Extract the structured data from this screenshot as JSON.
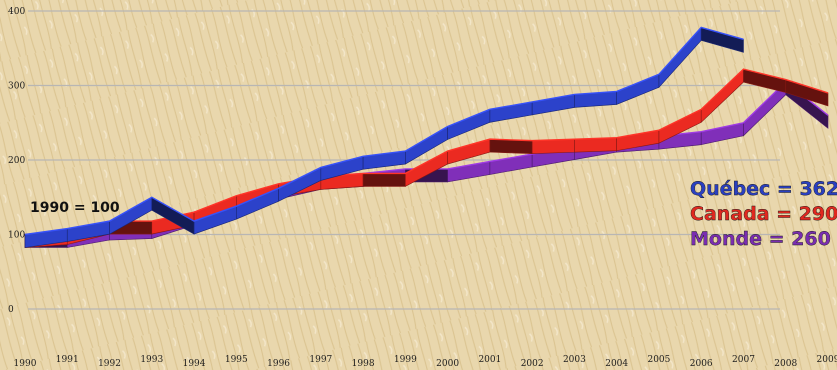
{
  "chart_data": {
    "type": "line",
    "annotation": "1990 = 100",
    "x": [
      "1990",
      "1991",
      "1992",
      "1993",
      "1994",
      "1995",
      "1996",
      "1997",
      "1998",
      "1999",
      "2000",
      "2001",
      "2002",
      "2003",
      "2004",
      "2005",
      "2006",
      "2007",
      "2008",
      "2009"
    ],
    "yticks": [
      "0",
      "100",
      "200",
      "300",
      "400"
    ],
    "ylim": [
      0,
      410
    ],
    "grid": true,
    "series": [
      {
        "name": "Monde",
        "legend": "Monde = 260",
        "color": "#7a2db0",
        "values": [
          100,
          100,
          110,
          112,
          130,
          148,
          165,
          178,
          182,
          188,
          188,
          198,
          208,
          218,
          228,
          232,
          238,
          250,
          305,
          260
        ]
      },
      {
        "name": "Canada",
        "legend": "Canada = 290",
        "color": "#e0281f",
        "values": [
          100,
          104,
          118,
          118,
          130,
          152,
          168,
          178,
          182,
          182,
          212,
          228,
          226,
          228,
          230,
          240,
          268,
          322,
          308,
          290
        ]
      },
      {
        "name": "Québec",
        "legend": "Québec = 362",
        "color": "#2a3fc0",
        "values": [
          100,
          108,
          118,
          150,
          118,
          138,
          162,
          190,
          205,
          212,
          245,
          268,
          278,
          288,
          292,
          315,
          378,
          362,
          null,
          null
        ]
      }
    ]
  },
  "colors": {
    "background": "#e6d3a9",
    "grid": "#b8b6b4"
  }
}
